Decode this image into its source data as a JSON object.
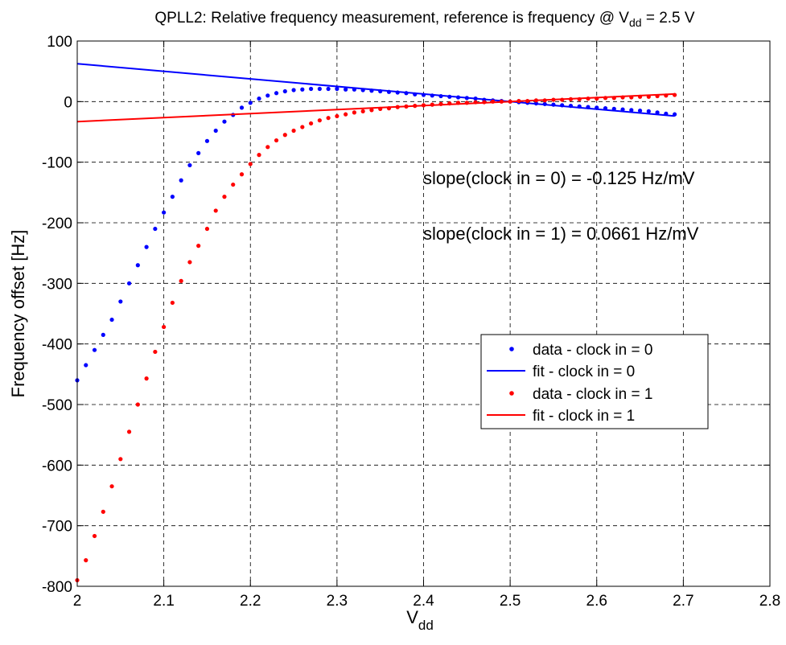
{
  "chart_data": {
    "type": "scatter",
    "title": {
      "main": "QPLL2: Relative frequency measurement, reference is frequency @ V",
      "sub": "dd",
      "tail": " = 2.5 V"
    },
    "xlabel": {
      "main": "V",
      "sub": "dd"
    },
    "ylabel": "Frequency offset [Hz]",
    "xlim": [
      2,
      2.8
    ],
    "ylim": [
      -800,
      100
    ],
    "x_ticks": [
      "2",
      "2.1",
      "2.2",
      "2.3",
      "2.4",
      "2.5",
      "2.6",
      "2.7",
      "2.8"
    ],
    "y_ticks": [
      "100",
      "0",
      "-100",
      "-200",
      "-300",
      "-400",
      "-500",
      "-600",
      "-700",
      "-800"
    ],
    "grid": true,
    "annotations": [
      "slope(clock in = 0) = -0.125 Hz/mV",
      "slope(clock in = 1) = 0.0661 Hz/mV"
    ],
    "legend_position": "right",
    "series": [
      {
        "name": "data - clock in = 0",
        "style": "dots",
        "color": "#0000ff",
        "x": [
          2.0,
          2.01,
          2.02,
          2.03,
          2.04,
          2.05,
          2.06,
          2.07,
          2.08,
          2.09,
          2.1,
          2.11,
          2.12,
          2.13,
          2.14,
          2.15,
          2.16,
          2.17,
          2.18,
          2.19,
          2.2,
          2.21,
          2.22,
          2.23,
          2.24,
          2.25,
          2.26,
          2.27,
          2.28,
          2.29,
          2.3,
          2.31,
          2.32,
          2.33,
          2.34,
          2.35,
          2.36,
          2.37,
          2.38,
          2.39,
          2.4,
          2.41,
          2.42,
          2.43,
          2.44,
          2.45,
          2.46,
          2.47,
          2.48,
          2.49,
          2.5,
          2.51,
          2.52,
          2.53,
          2.54,
          2.55,
          2.56,
          2.57,
          2.58,
          2.59,
          2.6,
          2.61,
          2.62,
          2.63,
          2.64,
          2.65,
          2.66,
          2.67,
          2.68,
          2.69
        ],
        "y": [
          -460,
          -435,
          -410,
          -385,
          -360,
          -330,
          -300,
          -270,
          -240,
          -210,
          -183,
          -157,
          -130,
          -105,
          -85,
          -65,
          -48,
          -33,
          -22,
          -10,
          -2,
          5,
          10,
          14,
          17,
          19,
          20,
          21,
          21,
          21,
          21,
          20,
          20,
          19,
          18,
          17,
          16,
          15,
          14,
          12,
          11,
          10,
          9,
          8,
          7,
          6,
          5,
          3,
          2,
          1,
          0,
          -1,
          -2,
          -3,
          -4,
          -5,
          -6,
          -7,
          -8,
          -9,
          -10,
          -11,
          -12,
          -13,
          -14,
          -15,
          -16,
          -18,
          -20,
          -21
        ]
      },
      {
        "name": "fit - clock in = 0",
        "style": "line",
        "color": "#0000ff",
        "x": [
          2.0,
          2.69
        ],
        "y": [
          62.5,
          -23.75
        ]
      },
      {
        "name": "data - clock in = 1",
        "style": "dots",
        "color": "#ff0000",
        "x": [
          2.0,
          2.01,
          2.02,
          2.03,
          2.04,
          2.05,
          2.06,
          2.07,
          2.08,
          2.09,
          2.1,
          2.11,
          2.12,
          2.13,
          2.14,
          2.15,
          2.16,
          2.17,
          2.18,
          2.19,
          2.2,
          2.21,
          2.22,
          2.23,
          2.24,
          2.25,
          2.26,
          2.27,
          2.28,
          2.29,
          2.3,
          2.31,
          2.32,
          2.33,
          2.34,
          2.35,
          2.36,
          2.37,
          2.38,
          2.39,
          2.4,
          2.41,
          2.42,
          2.43,
          2.44,
          2.45,
          2.46,
          2.47,
          2.48,
          2.49,
          2.5,
          2.51,
          2.52,
          2.53,
          2.54,
          2.55,
          2.56,
          2.57,
          2.58,
          2.59,
          2.6,
          2.61,
          2.62,
          2.63,
          2.64,
          2.65,
          2.66,
          2.67,
          2.68,
          2.69
        ],
        "y": [
          -790,
          -757,
          -717,
          -677,
          -635,
          -590,
          -545,
          -500,
          -457,
          -413,
          -372,
          -332,
          -296,
          -265,
          -238,
          -210,
          -180,
          -157,
          -137,
          -120,
          -103,
          -88,
          -75,
          -64,
          -55,
          -48,
          -42,
          -36,
          -31,
          -27,
          -24,
          -21,
          -18,
          -16,
          -14,
          -12,
          -11,
          -9,
          -8,
          -7,
          -6,
          -5,
          -4,
          -3,
          -2,
          -2,
          -1,
          -1,
          0,
          0,
          0,
          1,
          1,
          2,
          2,
          3,
          3,
          4,
          4,
          5,
          5,
          6,
          6,
          7,
          7,
          8,
          8,
          9,
          10,
          11
        ]
      },
      {
        "name": "fit - clock in = 1",
        "style": "line",
        "color": "#ff0000",
        "x": [
          2.0,
          2.69
        ],
        "y": [
          -33.05,
          12.56
        ]
      }
    ]
  }
}
